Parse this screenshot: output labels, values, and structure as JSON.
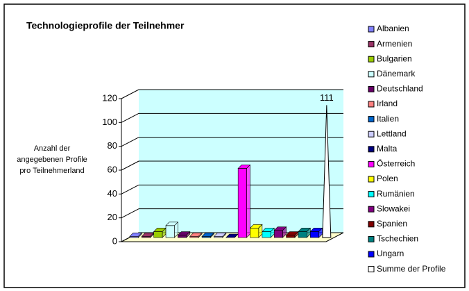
{
  "chart_data": {
    "type": "bar3d",
    "title": "Technologieprofile der Teilnehmer",
    "y_label": "Anzahl der angegebenen Profile pro Teilnehmerland",
    "categories": [
      "Albanien",
      "Armenien",
      "Bulgarien",
      "Dänemark",
      "Deutschland",
      "Irland",
      "Italien",
      "Lettland",
      "Malta",
      "Österreich",
      "Polen",
      "Rumänien",
      "Slowakei",
      "Spanien",
      "Tschechien",
      "Ungarn",
      "Summe der Profile"
    ],
    "values": [
      1,
      1,
      5,
      10,
      2,
      1,
      1,
      1,
      0,
      58,
      8,
      5,
      6,
      2,
      5,
      5,
      111
    ],
    "colors": [
      "#8080ff",
      "#993366",
      "#99cc00",
      "#ccffff",
      "#660066",
      "#ff8080",
      "#0066cc",
      "#ccccff",
      "#000080",
      "#ff00ff",
      "#ffff00",
      "#00ffff",
      "#800080",
      "#800000",
      "#008080",
      "#0000ff",
      "#ffffff"
    ],
    "ylim": [
      0,
      120
    ],
    "yticks": [
      0,
      20,
      40,
      60,
      80,
      100,
      120
    ],
    "grid": true,
    "legend": "right"
  }
}
